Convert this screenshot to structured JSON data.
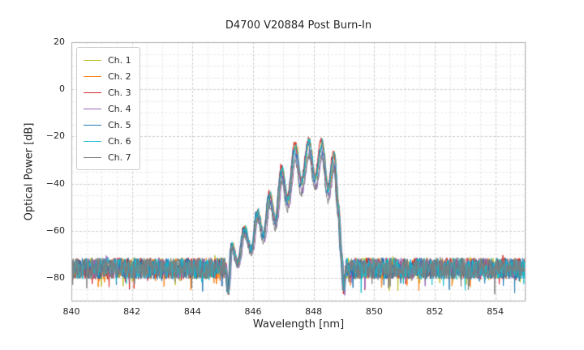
{
  "chart_data": {
    "type": "line",
    "title": "D4700 V20884 Post Burn-In",
    "xlabel": "Wavelength [nm]",
    "ylabel": "Optical Power [dB]",
    "xlim": [
      840,
      855
    ],
    "ylim": [
      -90,
      20
    ],
    "xticks": [
      840,
      842,
      844,
      846,
      848,
      850,
      852,
      854
    ],
    "yticks": [
      20,
      0,
      -20,
      -40,
      -60,
      -80
    ],
    "grid": {
      "on": true,
      "style": "dashed",
      "x_major_step": 2,
      "y_major_step": 20,
      "x_minor_step": 0.5,
      "y_minor_step": 5,
      "major_color": "#cdcdcd",
      "minor_color": "#e4e4e4",
      "spine_color": "#b0b0b0"
    },
    "legend": {
      "position": "upper left"
    },
    "noise_floor": {
      "top_db": -71.5,
      "spread_db": 9,
      "deep_spike_prob": 0.04,
      "deep_spike_db": 7
    },
    "signal_range_nm": [
      845.1,
      849.05
    ],
    "envelope": [
      [
        845.1,
        -76
      ],
      [
        845.18,
        -86
      ],
      [
        845.3,
        -66
      ],
      [
        845.5,
        -74
      ],
      [
        845.72,
        -59
      ],
      [
        845.95,
        -68
      ],
      [
        846.15,
        -52
      ],
      [
        846.35,
        -62
      ],
      [
        846.55,
        -45
      ],
      [
        846.75,
        -56
      ],
      [
        846.95,
        -34
      ],
      [
        847.15,
        -47
      ],
      [
        847.4,
        -24
      ],
      [
        847.6,
        -40
      ],
      [
        847.85,
        -22
      ],
      [
        848.05,
        -38
      ],
      [
        848.28,
        -23
      ],
      [
        848.48,
        -43
      ],
      [
        848.68,
        -28
      ],
      [
        848.82,
        -50
      ],
      [
        848.92,
        -70
      ],
      [
        849.0,
        -86
      ],
      [
        849.05,
        -78
      ]
    ],
    "series": [
      {
        "name": "Ch. 1",
        "color": "#bcbd22",
        "x_offset_nm": 0.0,
        "peak_delta_db": 0
      },
      {
        "name": "Ch. 2",
        "color": "#ff7f0e",
        "x_offset_nm": 0.018,
        "peak_delta_db": 0.5
      },
      {
        "name": "Ch. 3",
        "color": "#d62728",
        "x_offset_nm": -0.02,
        "peak_delta_db": 1.5
      },
      {
        "name": "Ch. 4",
        "color": "#9467bd",
        "x_offset_nm": 0.032,
        "peak_delta_db": -4
      },
      {
        "name": "Ch. 5",
        "color": "#1f77b4",
        "x_offset_nm": -0.034,
        "peak_delta_db": -1.5
      },
      {
        "name": "Ch. 6",
        "color": "#17becf",
        "x_offset_nm": 0.012,
        "peak_delta_db": 0.5
      },
      {
        "name": "Ch. 7",
        "color": "#7f7f7f",
        "x_offset_nm": -0.01,
        "peak_delta_db": -6
      }
    ]
  }
}
